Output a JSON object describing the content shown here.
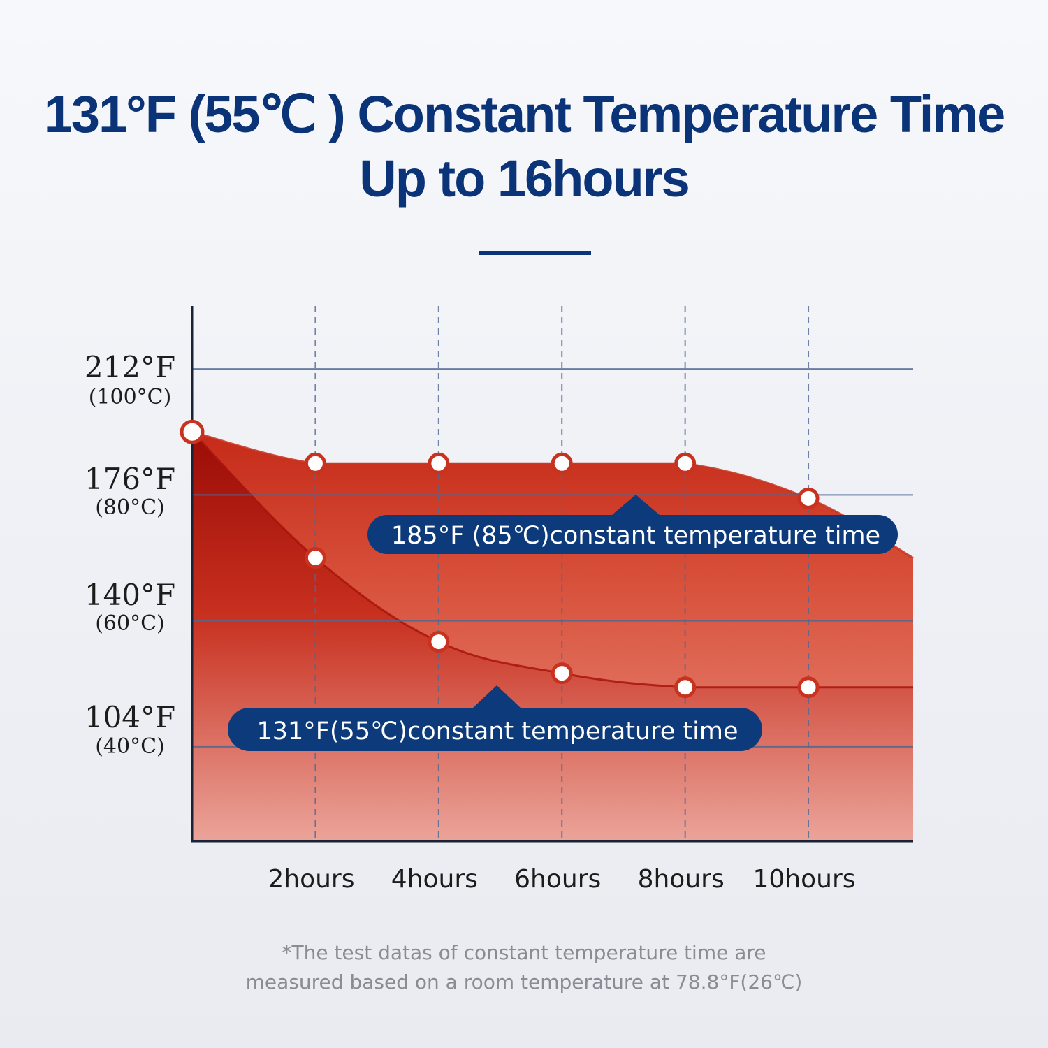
{
  "header": {
    "title_line1": "131°F (55℃ ) Constant Temperature Time",
    "title_line2": "Up to 16hours"
  },
  "colors": {
    "title": "#0b3478",
    "callout": "#0d3a7a",
    "series_85": "#c8321f",
    "series_55": "#a8140c",
    "grid": "#4f6893",
    "footnote": "#8a8c93"
  },
  "chart_data": {
    "type": "area",
    "title": "",
    "x_unit": "hours",
    "x": [
      0,
      2,
      4,
      6,
      8,
      10
    ],
    "x_tick_labels": [
      "2hours",
      "4hours",
      "6hours",
      "8hours",
      "10hours"
    ],
    "x_tick_values": [
      2,
      4,
      6,
      8,
      10
    ],
    "xlim": [
      0,
      11.7
    ],
    "y_unit": "°F",
    "y_tick_values": [
      212,
      176,
      140,
      104
    ],
    "y_tick_labels": [
      {
        "f": "212°F",
        "c": "(100°C)"
      },
      {
        "f": "176°F",
        "c": "(80°C)"
      },
      {
        "f": "140°F",
        "c": "(60°C)"
      },
      {
        "f": "104°F",
        "c": "(40°C)"
      }
    ],
    "ylim": [
      77,
      230
    ],
    "grid": true,
    "series": [
      {
        "name": "185°F (85℃)constant temperature time",
        "values": [
          194,
          185,
          185,
          185,
          185,
          175
        ],
        "tail_end": {
          "x": 11.7,
          "y": 158
        }
      },
      {
        "name": "131°F(55℃)constant temperature time",
        "values": [
          194,
          158,
          134,
          125,
          121,
          121
        ],
        "tail_end": {
          "x": 11.7,
          "y": 121
        }
      }
    ]
  },
  "footnote": {
    "line1": "*The test datas of constant temperature time are",
    "line2": "measured based on a room temperature at 78.8°F(26℃)"
  }
}
